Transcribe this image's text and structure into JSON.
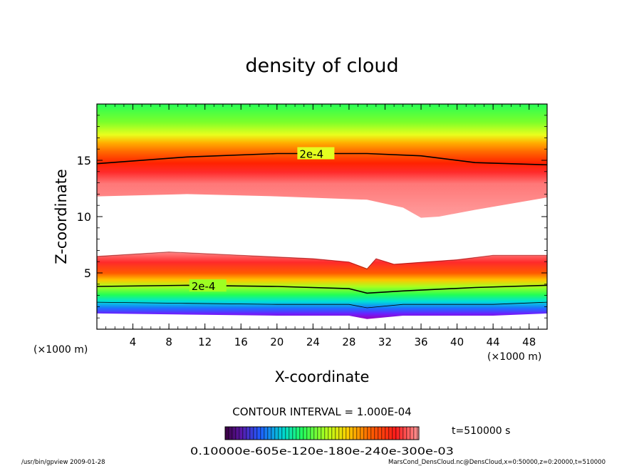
{
  "chart_data": {
    "type": "heatmap",
    "title": "density of cloud",
    "xlabel": "X-coordinate",
    "ylabel": "Z-coordinate",
    "x_unit": "(×1000 m)",
    "y_unit": "(×1000 m)",
    "xlim": [
      0,
      50
    ],
    "ylim": [
      0,
      20
    ],
    "x_ticks": [
      4,
      8,
      12,
      16,
      20,
      24,
      28,
      32,
      36,
      40,
      44,
      48
    ],
    "y_ticks": [
      5,
      10,
      15
    ],
    "contour_interval_text": "CONTOUR INTERVAL = 1.000E-04",
    "contour_label": "2e-4",
    "time_label": "t=510000 s",
    "colorbar_labels_text": "0.10000e-605e-120e-180e-240e-300e-03",
    "footer_left": "/usr/bin/gpview 2009-01-28",
    "footer_right": "MarsCond_DensCloud.nc@DensCloud,x=0:50000,z=0:20000,t=510000",
    "layers": {
      "upper_green_top": 20,
      "upper_contour_2e4": [
        [
          0,
          14.7
        ],
        [
          10,
          15.3
        ],
        [
          20,
          15.6
        ],
        [
          30,
          15.6
        ],
        [
          36,
          15.4
        ],
        [
          42,
          14.8
        ],
        [
          50,
          14.6
        ]
      ],
      "upper_cloud_base": [
        [
          0,
          11.8
        ],
        [
          10,
          12.0
        ],
        [
          20,
          11.8
        ],
        [
          30,
          11.5
        ],
        [
          34,
          10.8
        ],
        [
          36,
          9.9
        ],
        [
          38,
          10.0
        ],
        [
          42,
          10.6
        ],
        [
          50,
          11.7
        ]
      ],
      "lower_cloud_top": [
        [
          0,
          6.5
        ],
        [
          8,
          6.9
        ],
        [
          16,
          6.6
        ],
        [
          24,
          6.3
        ],
        [
          28,
          6.0
        ],
        [
          30,
          5.4
        ],
        [
          31,
          6.3
        ],
        [
          33,
          5.8
        ],
        [
          40,
          6.2
        ],
        [
          44,
          6.6
        ],
        [
          50,
          6.6
        ]
      ],
      "lower_contour_2e4": [
        [
          0,
          3.8
        ],
        [
          10,
          3.9
        ],
        [
          20,
          3.8
        ],
        [
          28,
          3.6
        ],
        [
          30,
          3.2
        ],
        [
          34,
          3.4
        ],
        [
          42,
          3.7
        ],
        [
          50,
          3.9
        ]
      ],
      "lower_purple_base": [
        [
          0,
          1.4
        ],
        [
          10,
          1.3
        ],
        [
          20,
          1.2
        ],
        [
          28,
          1.2
        ],
        [
          30,
          0.9
        ],
        [
          34,
          1.2
        ],
        [
          44,
          1.2
        ],
        [
          50,
          1.4
        ]
      ]
    }
  }
}
